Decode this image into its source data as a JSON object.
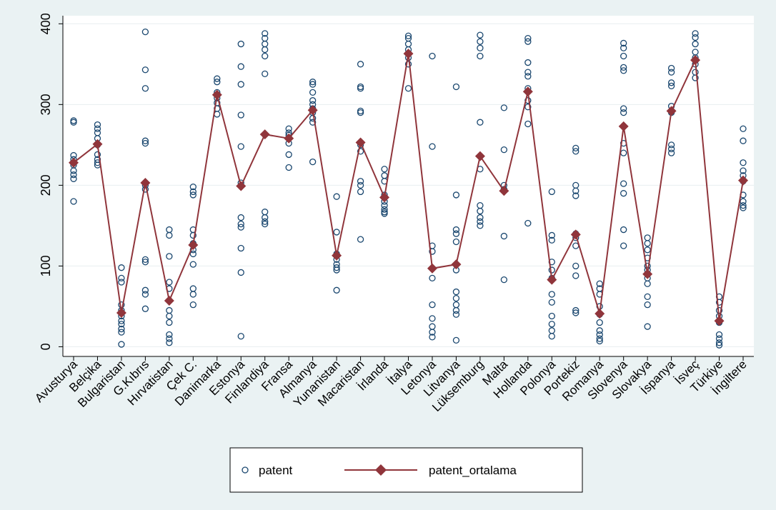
{
  "chart_data": {
    "type": "scatter-line",
    "categories": [
      "Avusturya",
      "Belçika",
      "Bulgaristan",
      "G.Kıbrıs",
      "Hırvatistan",
      "Çek C.",
      "Danimarka",
      "Estonya",
      "Finlandiya",
      "Fransa",
      "Almanya",
      "Yunanistan",
      "Macaristan",
      "İrlanda",
      "İtalya",
      "Letonya",
      "Litvanya",
      "Lüksemburg",
      "Malta",
      "Hollanda",
      "Polonya",
      "Portekiz",
      "Romanya",
      "Slovenya",
      "Slovakya",
      "İspanya",
      "İsveç",
      "Türkiye",
      "İngiltere"
    ],
    "series": [
      {
        "name": "patent",
        "type": "scatter",
        "color": "#1a476f",
        "values": [
          [
            280,
            278,
            237,
            232,
            225,
            218,
            213,
            208,
            180
          ],
          [
            275,
            270,
            265,
            258,
            250,
            238,
            232,
            228,
            225
          ],
          [
            98,
            85,
            80,
            52,
            45,
            38,
            32,
            28,
            22,
            18,
            3
          ],
          [
            390,
            343,
            320,
            255,
            252,
            200,
            195,
            108,
            105,
            70,
            65,
            47
          ],
          [
            145,
            138,
            112,
            80,
            72,
            45,
            38,
            30,
            15,
            10,
            5
          ],
          [
            198,
            192,
            188,
            145,
            138,
            128,
            120,
            115,
            102,
            72,
            65,
            52
          ],
          [
            332,
            328,
            315,
            308,
            302,
            295,
            288
          ],
          [
            375,
            347,
            325,
            287,
            248,
            203,
            160,
            152,
            148,
            122,
            92,
            13
          ],
          [
            388,
            382,
            375,
            368,
            360,
            338,
            167,
            160,
            155,
            152
          ],
          [
            270,
            265,
            262,
            258,
            252,
            238,
            222
          ],
          [
            328,
            325,
            315,
            305,
            300,
            295,
            290,
            283,
            278,
            229
          ],
          [
            186,
            142,
            115,
            108,
            102,
            98,
            95,
            70
          ],
          [
            350,
            322,
            320,
            292,
            290,
            250,
            242,
            205,
            200,
            192,
            133
          ],
          [
            220,
            212,
            205,
            188,
            180,
            175,
            170,
            167,
            165
          ],
          [
            385,
            382,
            375,
            368,
            358,
            350,
            320
          ],
          [
            360,
            248,
            125,
            118,
            85,
            52,
            35,
            25,
            18,
            12
          ],
          [
            322,
            188,
            145,
            140,
            130,
            95,
            68,
            60,
            52,
            45,
            40,
            8
          ],
          [
            386,
            378,
            370,
            360,
            278,
            220,
            175,
            168,
            160,
            155,
            150
          ],
          [
            296,
            244,
            200,
            195,
            137,
            83
          ],
          [
            382,
            378,
            352,
            340,
            335,
            320,
            305,
            297,
            276,
            153
          ],
          [
            192,
            138,
            132,
            105,
            95,
            85,
            65,
            55,
            38,
            28,
            20,
            13
          ],
          [
            246,
            242,
            200,
            193,
            187,
            140,
            135,
            125,
            100,
            88,
            45,
            42
          ],
          [
            78,
            72,
            65,
            50,
            40,
            30,
            20,
            15,
            10,
            7
          ],
          [
            376,
            370,
            360,
            346,
            342,
            295,
            290,
            252,
            240,
            202,
            190,
            145,
            125
          ],
          [
            135,
            128,
            120,
            110,
            100,
            95,
            85,
            78,
            62,
            52,
            25
          ],
          [
            345,
            340,
            327,
            323,
            298,
            290,
            250,
            245,
            240
          ],
          [
            388,
            383,
            375,
            365,
            358,
            350,
            340,
            333
          ],
          [
            62,
            55,
            45,
            38,
            30,
            15,
            10,
            5,
            2
          ],
          [
            270,
            255,
            228,
            218,
            212,
            205,
            188,
            180,
            175,
            172
          ]
        ]
      },
      {
        "name": "patent_ortalama",
        "type": "line",
        "color": "#90353b",
        "values": [
          228,
          251,
          42,
          203,
          57,
          126,
          312,
          199,
          263,
          258,
          293,
          113,
          253,
          185,
          363,
          97,
          102,
          236,
          193,
          316,
          83,
          139,
          41,
          273,
          90,
          292,
          355,
          32,
          206
        ]
      }
    ],
    "ylim": [
      -12,
      410
    ],
    "yticks": [
      0,
      100,
      200,
      300,
      400
    ],
    "grid": true
  }
}
